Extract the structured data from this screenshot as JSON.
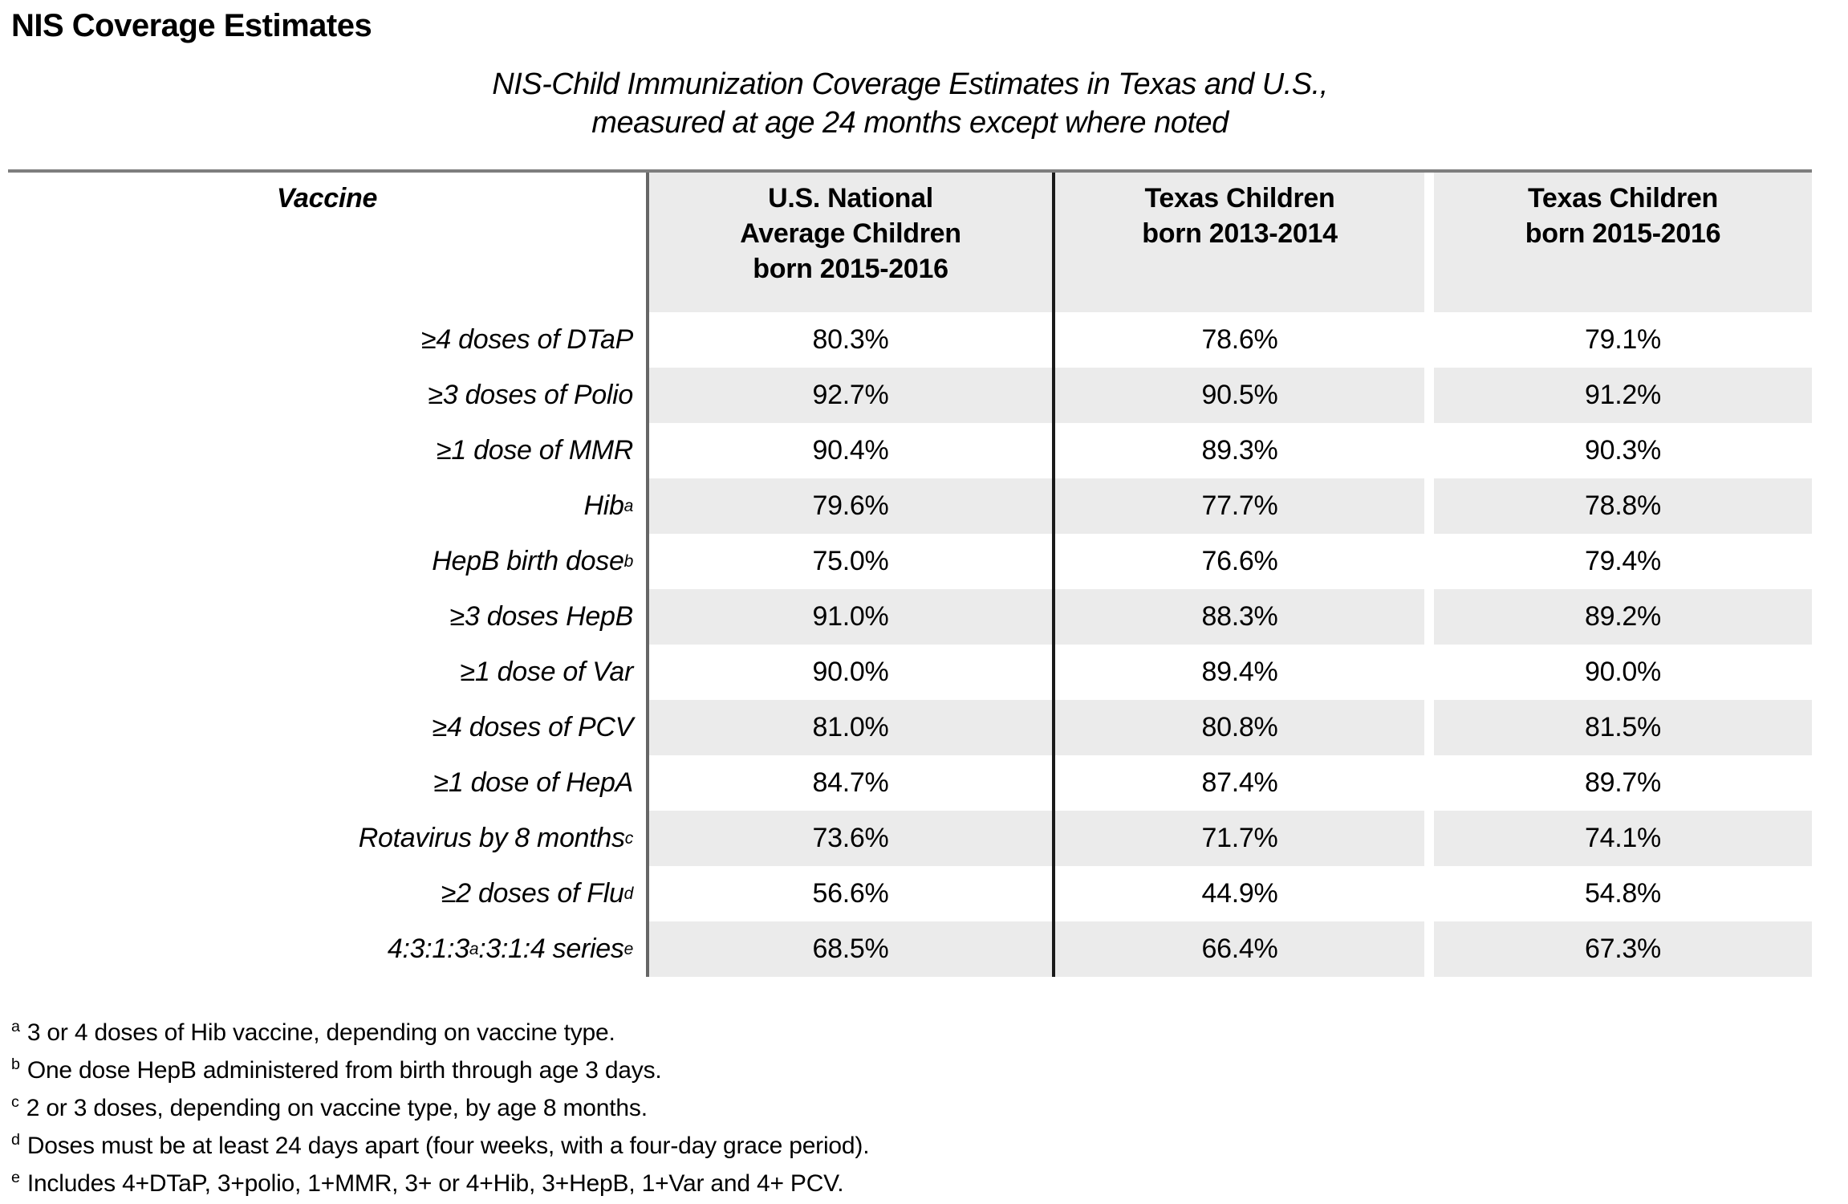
{
  "page": {
    "title": "NIS Coverage Estimates",
    "subtitle_line1": "NIS-Child Immunization Coverage Estimates in Texas and U.S.,",
    "subtitle_line2": "measured at age 24 months except where noted"
  },
  "table": {
    "columns": [
      {
        "id": "vaccine",
        "lines": [
          "Vaccine"
        ]
      },
      {
        "id": "us-national-2015-2016",
        "lines": [
          "U.S. National",
          "Average Children",
          "born 2015-2016"
        ]
      },
      {
        "id": "texas-2013-2014",
        "lines": [
          "Texas Children",
          "born 2013-2014"
        ]
      },
      {
        "id": "texas-2015-2016",
        "lines": [
          "Texas Children",
          "born 2015-2016"
        ]
      }
    ],
    "rows": [
      {
        "label": [
          {
            "t": "≥4 doses of DTaP"
          }
        ],
        "values": [
          "80.3%",
          "78.6%",
          "79.1%"
        ]
      },
      {
        "label": [
          {
            "t": "≥3 doses of Polio"
          }
        ],
        "values": [
          "92.7%",
          "90.5%",
          "91.2%"
        ]
      },
      {
        "label": [
          {
            "t": "≥1 dose of MMR"
          }
        ],
        "values": [
          "90.4%",
          "89.3%",
          "90.3%"
        ]
      },
      {
        "label": [
          {
            "t": "Hib"
          },
          {
            "s": "a"
          }
        ],
        "values": [
          "79.6%",
          "77.7%",
          "78.8%"
        ]
      },
      {
        "label": [
          {
            "t": "HepB birth dose"
          },
          {
            "s": "b"
          }
        ],
        "values": [
          "75.0%",
          "76.6%",
          "79.4%"
        ]
      },
      {
        "label": [
          {
            "t": "≥3 doses HepB"
          }
        ],
        "values": [
          "91.0%",
          "88.3%",
          "89.2%"
        ]
      },
      {
        "label": [
          {
            "t": "≥1 dose of Var"
          }
        ],
        "values": [
          "90.0%",
          "89.4%",
          "90.0%"
        ]
      },
      {
        "label": [
          {
            "t": "≥4 doses of PCV"
          }
        ],
        "values": [
          "81.0%",
          "80.8%",
          "81.5%"
        ]
      },
      {
        "label": [
          {
            "t": "≥1 dose of HepA"
          }
        ],
        "values": [
          "84.7%",
          "87.4%",
          "89.7%"
        ]
      },
      {
        "label": [
          {
            "t": "Rotavirus by 8 months"
          },
          {
            "s": "c"
          }
        ],
        "values": [
          "73.6%",
          "71.7%",
          "74.1%"
        ]
      },
      {
        "label": [
          {
            "t": "≥2 doses of Flu"
          },
          {
            "s": "d"
          }
        ],
        "values": [
          "56.6%",
          "44.9%",
          "54.8%"
        ]
      },
      {
        "label": [
          {
            "t": "4:3:1:3"
          },
          {
            "s": "a"
          },
          {
            "t": ":3:1:4 series"
          },
          {
            "s": "e"
          }
        ],
        "values": [
          "68.5%",
          "66.4%",
          "67.3%"
        ]
      }
    ]
  },
  "footnotes": [
    {
      "marker": "a",
      "text": "3 or 4 doses of Hib vaccine, depending on vaccine type."
    },
    {
      "marker": "b",
      "text": "One dose HepB administered from birth through age 3 days."
    },
    {
      "marker": "c",
      "text": "2 or 3 doses, depending on vaccine type, by age 8 months."
    },
    {
      "marker": "d",
      "text": "Doses must be at least 24 days apart (four weeks, with a four-day grace period)."
    },
    {
      "marker": "e",
      "text": "Includes 4+DTaP, 3+polio, 1+MMR, 3+ or 4+Hib, 3+HepB, 1+Var and 4+ PCV."
    }
  ],
  "colors": {
    "stripe": "#ebebeb",
    "top_border": "#7e7e7e",
    "divider_gray": "#666666",
    "divider_black": "#1a1a1a"
  }
}
